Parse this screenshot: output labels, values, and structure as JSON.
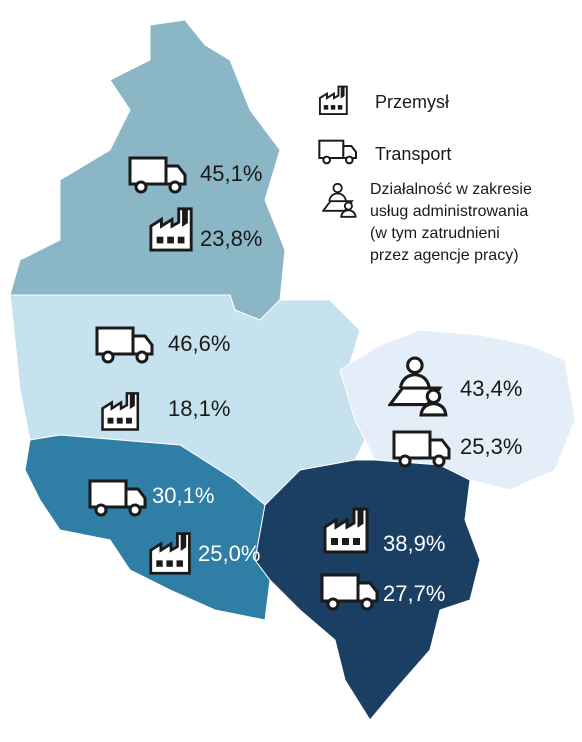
{
  "legend": {
    "industry": "Przemysł",
    "transport": "Transport",
    "admin": [
      "Działalność w zakresie",
      "usług administrowania",
      "(w tym zatrudnieni",
      "przez agencje pracy)"
    ]
  },
  "regions": [
    [
      "45,1%",
      "23,8%"
    ],
    [
      "46,6%",
      "18,1%"
    ],
    [
      "43,4%",
      "25,3%"
    ],
    [
      "30,1%",
      "25,0%"
    ],
    [
      "38,9%",
      "27,7%"
    ]
  ]
}
